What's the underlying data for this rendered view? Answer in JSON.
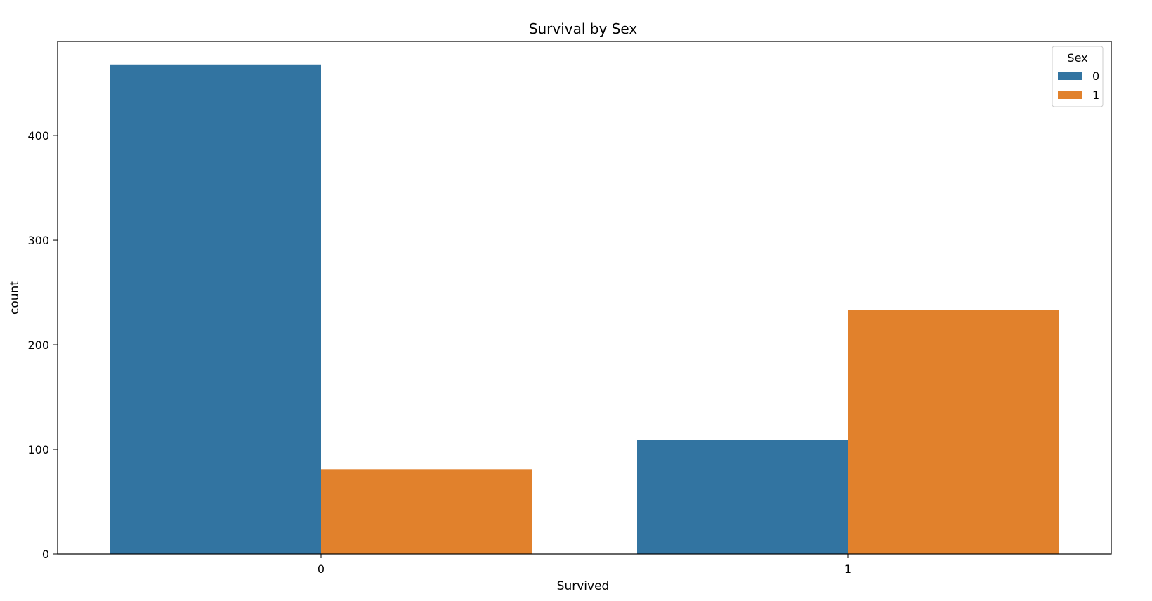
{
  "chart_data": {
    "type": "bar",
    "title": "Survival by Sex",
    "xlabel": "Survived",
    "ylabel": "count",
    "categories": [
      "0",
      "1"
    ],
    "series": [
      {
        "name": "0",
        "values": [
          468,
          109
        ],
        "color": "#3274a1"
      },
      {
        "name": "1",
        "values": [
          81,
          233
        ],
        "color": "#e1812c"
      }
    ],
    "ylim": [
      0,
      490
    ],
    "yticks": [
      0,
      100,
      200,
      300,
      400
    ],
    "legend": {
      "title": "Sex",
      "placement": "top-right"
    },
    "grid": false
  }
}
